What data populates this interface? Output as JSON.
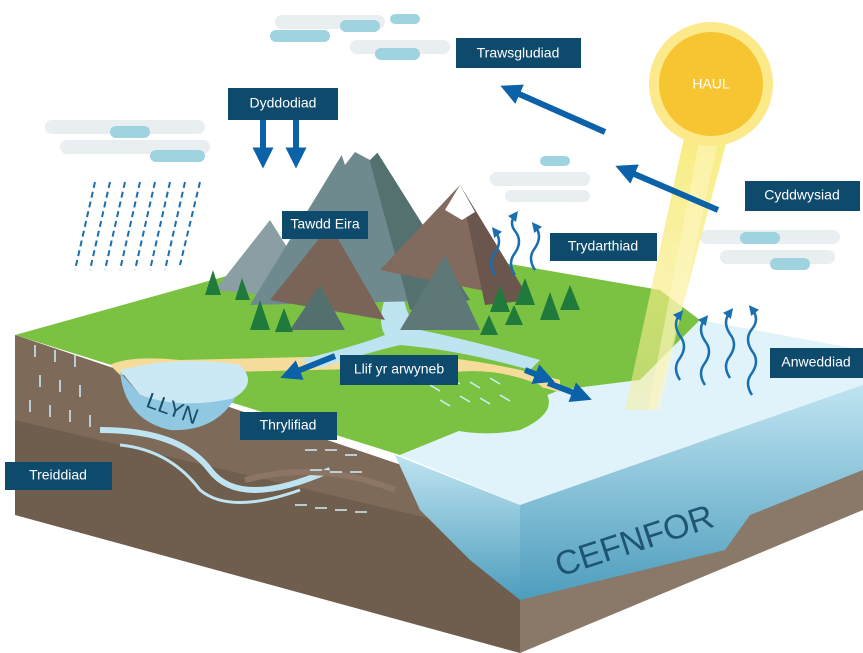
{
  "sun": "HAUL",
  "lake": "LLYN",
  "ocean": "CEFNFOR",
  "labels": [
    "Trawsgludiad",
    "Dyddodiad",
    "Tawdd Eira",
    "Trydarthiad",
    "Cyddwysiad",
    "Anweddiad",
    "Llif yr arwyneb",
    "Thrylifiad",
    "Treiddiad"
  ]
}
